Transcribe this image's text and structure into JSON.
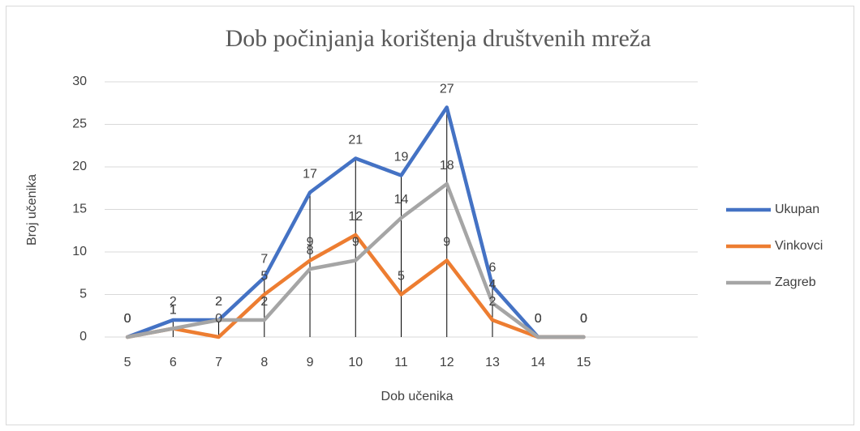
{
  "chart_data": {
    "type": "line",
    "title": "Dob počinjanja korištenja društvenih mreža",
    "x_label": "Dob učenika",
    "y_label": "Broj učenika",
    "categories": [
      "5",
      "6",
      "7",
      "8",
      "9",
      "10",
      "11",
      "12",
      "13",
      "14",
      "15",
      null,
      null
    ],
    "series": [
      {
        "name": "Ukupan",
        "color": "#4472c4",
        "values": [
          0,
          2,
          2,
          7,
          17,
          21,
          19,
          27,
          6,
          0,
          0,
          null,
          null
        ]
      },
      {
        "name": "Vinkovci",
        "color": "#ed7d31",
        "values": [
          0,
          1,
          0,
          5,
          9,
          12,
          5,
          9,
          2,
          0,
          0,
          null,
          null
        ]
      },
      {
        "name": "Zagreb",
        "color": "#a5a5a5",
        "values": [
          0,
          1,
          2,
          2,
          8,
          9,
          14,
          18,
          4,
          0,
          0,
          null,
          null
        ]
      }
    ],
    "ylim": [
      0,
      30
    ],
    "yticks": [
      0,
      5,
      10,
      15,
      20,
      25,
      30
    ],
    "grid": true,
    "legend": "right",
    "drop_lines": true
  }
}
